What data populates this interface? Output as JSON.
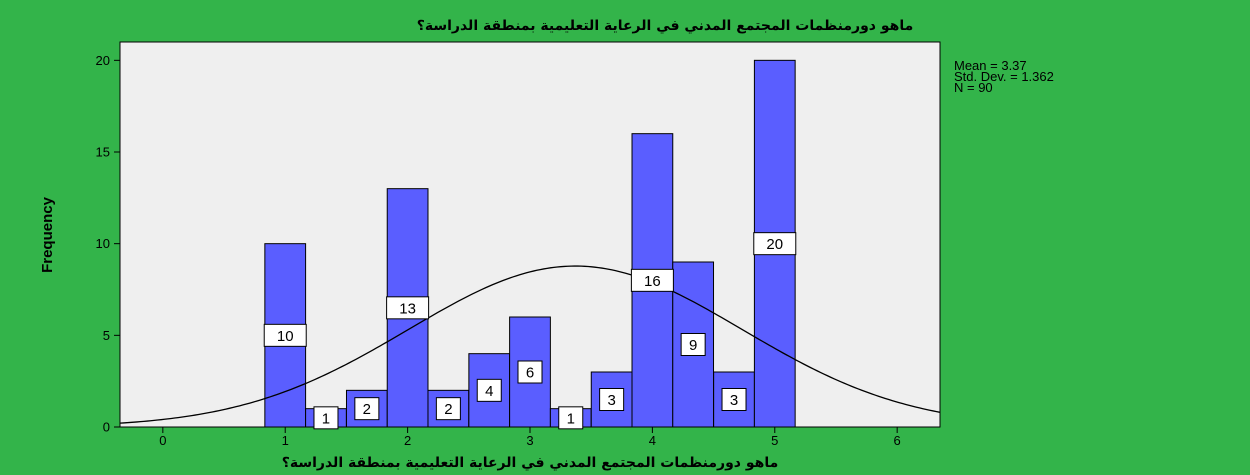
{
  "chart_data": {
    "type": "bar",
    "title": "ماهو دورمنظمات المجتمع المدني في الرعاية التعليمية بمنطقة الدراسة؟",
    "xlabel": "ماهو دورمنظمات المجتمع المدني في الرعاية التعليمية بمنطقة الدراسة؟",
    "ylabel": "Frequency",
    "xlim": [
      -0.35,
      6.35
    ],
    "ylim": [
      0,
      21
    ],
    "x_ticks": [
      0,
      1,
      2,
      3,
      4,
      5,
      6
    ],
    "y_ticks": [
      0,
      5,
      10,
      15,
      20
    ],
    "bin_width": 0.333,
    "bins": [
      {
        "center": 1.0,
        "value": 10,
        "label": "10"
      },
      {
        "center": 1.333,
        "value": 1,
        "label": "1"
      },
      {
        "center": 1.667,
        "value": 2,
        "label": "2"
      },
      {
        "center": 2.0,
        "value": 13,
        "label": "13"
      },
      {
        "center": 2.333,
        "value": 2,
        "label": "2"
      },
      {
        "center": 2.667,
        "value": 4,
        "label": "4"
      },
      {
        "center": 3.0,
        "value": 6,
        "label": "6"
      },
      {
        "center": 3.333,
        "value": 1,
        "label": "1"
      },
      {
        "center": 3.667,
        "value": 3,
        "label": "3"
      },
      {
        "center": 4.0,
        "value": 16,
        "label": "16"
      },
      {
        "center": 4.333,
        "value": 9,
        "label": "9"
      },
      {
        "center": 4.667,
        "value": 3,
        "label": "3"
      },
      {
        "center": 5.0,
        "value": 20,
        "label": "20"
      }
    ],
    "normal_curve": {
      "mean": 3.37,
      "std_dev": 1.362,
      "n": 90
    },
    "stats": {
      "mean": "Mean = 3.37",
      "std_dev": "Std. Dev. = 1.362",
      "n": "N = 90"
    },
    "grid": false,
    "legend": "top-right"
  },
  "colors": {
    "background": "#33b44a",
    "plot_area": "#efefef",
    "bar_fill": "#5a5eff",
    "bar_stroke": "#000000",
    "curve": "#000000"
  }
}
